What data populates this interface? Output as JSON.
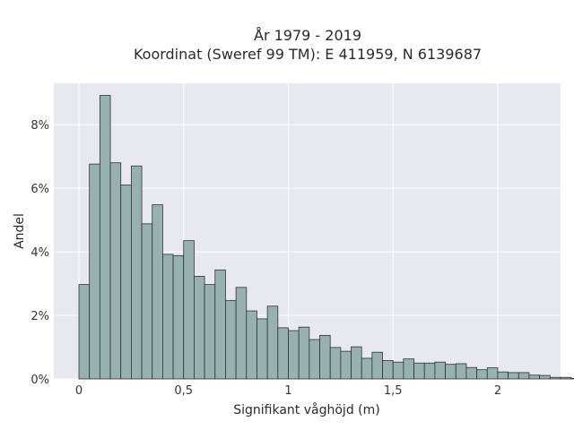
{
  "chart_data": {
    "type": "bar",
    "title_line1": "År 1979 - 2019",
    "title_line2": "Koordinat (Sweref 99 TM): E 411959, N 6139687",
    "xlabel": "Signifikant våghöjd (m)",
    "ylabel": "Andel",
    "xlim": [
      -0.12,
      2.3
    ],
    "ylim": [
      0,
      9.3
    ],
    "x_ticks": [
      0,
      0.5,
      1,
      1.5,
      2
    ],
    "x_tick_labels": [
      "0",
      "0,5",
      "1",
      "1,5",
      "2"
    ],
    "y_ticks": [
      0,
      2,
      4,
      6,
      8
    ],
    "y_tick_labels": [
      "0%",
      "2%",
      "4%",
      "6%",
      "8%"
    ],
    "bin_start": 0,
    "bin_width": 0.05,
    "values": [
      2.97,
      6.76,
      8.92,
      6.8,
      6.1,
      6.7,
      4.88,
      5.48,
      3.92,
      3.88,
      4.35,
      3.23,
      2.97,
      3.43,
      2.47,
      2.88,
      2.14,
      1.89,
      2.29,
      1.61,
      1.52,
      1.63,
      1.24,
      1.37,
      0.99,
      0.87,
      1.01,
      0.65,
      0.84,
      0.58,
      0.53,
      0.63,
      0.5,
      0.5,
      0.53,
      0.46,
      0.48,
      0.36,
      0.29,
      0.35,
      0.22,
      0.2,
      0.2,
      0.12,
      0.11,
      0.05,
      0.05,
      0.02,
      0.02,
      0.01
    ],
    "grid": true,
    "legend": "none"
  }
}
